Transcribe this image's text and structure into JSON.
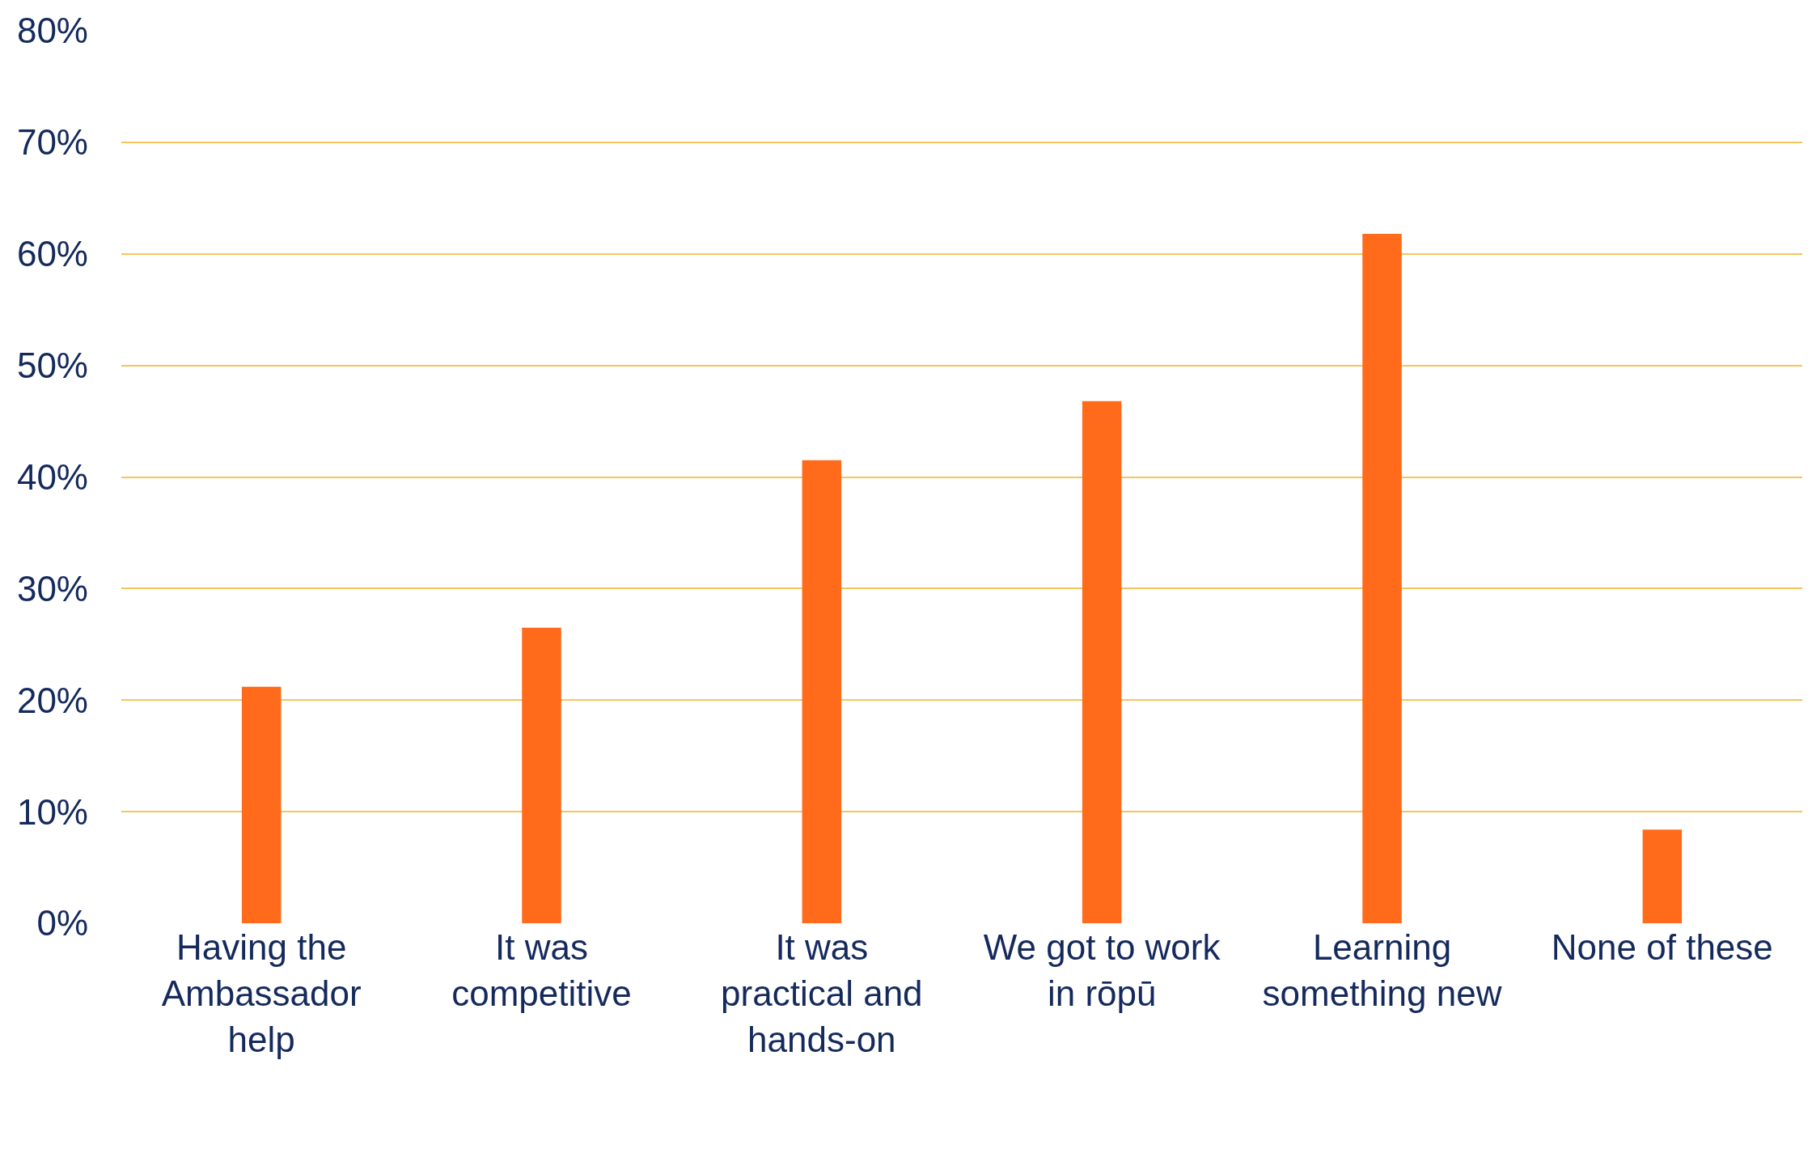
{
  "chart_data": {
    "type": "bar",
    "categories": [
      "Having the Ambassador help",
      "It was competitive",
      "It was practical and hands-on",
      "We got to work in rōpū",
      "Learning something new",
      "None of these"
    ],
    "values": [
      21.2,
      26.5,
      41.5,
      46.8,
      61.8,
      8.4
    ],
    "color": "#ff6b1a",
    "ylim": [
      0,
      80
    ],
    "yticks": [
      {
        "value": 0,
        "label": "0%"
      },
      {
        "value": 10,
        "label": "10%"
      },
      {
        "value": 20,
        "label": "20%"
      },
      {
        "value": 30,
        "label": "30%"
      },
      {
        "value": 40,
        "label": "40%"
      },
      {
        "value": 50,
        "label": "50%"
      },
      {
        "value": 60,
        "label": "60%"
      },
      {
        "value": 70,
        "label": "70%"
      },
      {
        "value": 80,
        "label": "80%"
      }
    ],
    "grid": "y",
    "legend": false
  }
}
